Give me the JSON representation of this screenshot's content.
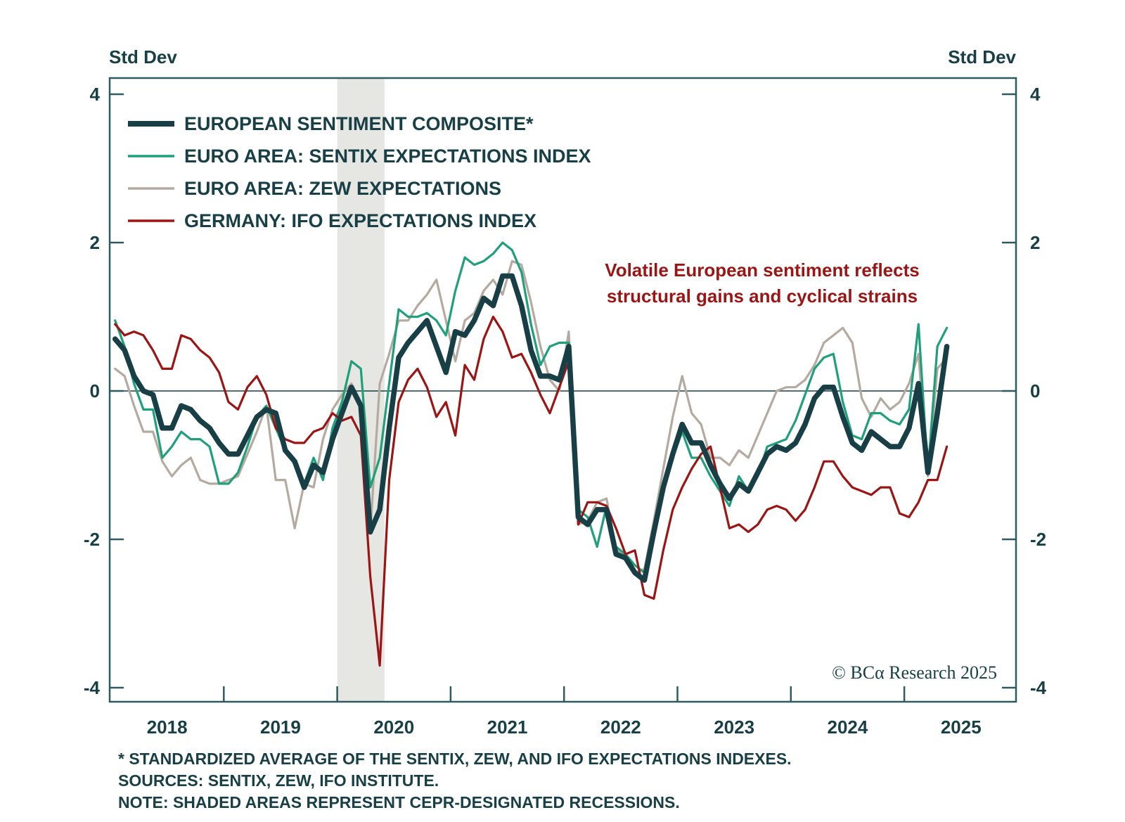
{
  "chart_data": {
    "type": "line",
    "title": "",
    "ylabel_left": "Std Dev",
    "ylabel_right": "Std Dev",
    "ylim": [
      -4.2,
      4.2
    ],
    "yticks": [
      4,
      2,
      0,
      -2,
      -4
    ],
    "ytick_labels": [
      "4",
      "2",
      "0",
      "-2",
      "-4"
    ],
    "x_start": "2018-01",
    "x_frequency": "monthly",
    "x_range_years": [
      2018,
      2026
    ],
    "xtick_labels": [
      "2018",
      "2019",
      "2020",
      "2021",
      "2022",
      "2023",
      "2024",
      "2025"
    ],
    "grid": false,
    "zero_line": true,
    "legend_position": "top-left",
    "recession_shading": [
      {
        "start": "2020-01",
        "end": "2020-05"
      }
    ],
    "annotation": [
      "Volatile European sentiment reflects",
      "structural gains and cyclical strains"
    ],
    "copyright": "© BCα Research 2025",
    "series": [
      {
        "name": "EUROPEAN SENTIMENT COMPOSITE*",
        "color": "#173f45",
        "values": [
          0.7,
          0.55,
          0.2,
          0.0,
          -0.05,
          -0.5,
          -0.5,
          -0.2,
          -0.25,
          -0.4,
          -0.5,
          -0.7,
          -0.85,
          -0.85,
          -0.6,
          -0.35,
          -0.25,
          -0.3,
          -0.8,
          -0.95,
          -1.3,
          -1.0,
          -1.1,
          -0.65,
          -0.3,
          0.05,
          -0.2,
          -1.9,
          -1.6,
          -0.5,
          0.45,
          0.65,
          0.8,
          0.95,
          0.6,
          0.25,
          0.8,
          0.75,
          0.95,
          1.25,
          1.15,
          1.55,
          1.55,
          1.15,
          0.55,
          0.2,
          0.2,
          0.15,
          0.6,
          -1.7,
          -1.8,
          -1.6,
          -1.6,
          -2.2,
          -2.25,
          -2.45,
          -2.55,
          -1.9,
          -1.3,
          -0.85,
          -0.45,
          -0.7,
          -0.7,
          -1.0,
          -1.25,
          -1.45,
          -1.25,
          -1.35,
          -1.1,
          -0.85,
          -0.75,
          -0.8,
          -0.7,
          -0.45,
          -0.1,
          0.05,
          0.05,
          -0.35,
          -0.7,
          -0.8,
          -0.55,
          -0.65,
          -0.75,
          -0.75,
          -0.5,
          0.1,
          -1.1,
          -0.3,
          0.6
        ]
      },
      {
        "name": "EURO AREA: SENTIX EXPECTATIONS INDEX",
        "color": "#1fa07a",
        "values": [
          0.95,
          0.6,
          0.1,
          -0.25,
          -0.25,
          -0.9,
          -0.75,
          -0.55,
          -0.65,
          -0.65,
          -0.75,
          -1.25,
          -1.25,
          -1.1,
          -0.75,
          -0.35,
          -0.2,
          -0.5,
          -0.8,
          -0.95,
          -1.25,
          -0.9,
          -1.2,
          -0.5,
          -0.15,
          0.4,
          0.3,
          -1.3,
          -0.9,
          0.1,
          1.1,
          1.0,
          1.0,
          1.05,
          0.95,
          0.75,
          1.35,
          1.8,
          1.7,
          1.75,
          1.85,
          2.0,
          1.9,
          1.6,
          0.9,
          0.35,
          0.6,
          0.65,
          0.65,
          -1.6,
          -1.7,
          -2.1,
          -1.55,
          -2.1,
          -2.2,
          -2.35,
          -2.45,
          -1.85,
          -1.35,
          -0.9,
          -0.55,
          -0.9,
          -0.9,
          -1.15,
          -1.35,
          -1.55,
          -1.15,
          -1.35,
          -1.15,
          -0.75,
          -0.7,
          -0.65,
          -0.4,
          -0.05,
          0.3,
          0.45,
          0.5,
          -0.15,
          -0.6,
          -0.65,
          -0.3,
          -0.3,
          -0.4,
          -0.45,
          -0.25,
          0.9,
          -1.1,
          0.6,
          0.85
        ]
      },
      {
        "name": "EURO AREA: ZEW EXPECTATIONS",
        "color": "#b5aaa0",
        "values": [
          0.3,
          0.2,
          -0.2,
          -0.55,
          -0.55,
          -0.95,
          -1.15,
          -1.0,
          -0.9,
          -1.2,
          -1.25,
          -1.25,
          -1.2,
          -1.15,
          -0.85,
          -0.55,
          -0.2,
          -1.2,
          -1.2,
          -1.85,
          -1.25,
          -1.3,
          -0.65,
          -0.25,
          -0.05,
          0.1,
          -0.2,
          -1.9,
          0.1,
          0.5,
          0.95,
          0.95,
          1.15,
          1.3,
          1.5,
          0.95,
          0.4,
          0.95,
          1.05,
          1.35,
          1.5,
          1.3,
          1.75,
          1.7,
          1.2,
          0.6,
          0.15,
          0.0,
          0.8,
          -1.8,
          -1.75,
          -1.5,
          -1.45,
          -2.15,
          -2.2,
          -2.45,
          -2.4,
          -1.75,
          -1.05,
          -0.35,
          0.2,
          -0.3,
          -0.45,
          -0.9,
          -0.9,
          -1.0,
          -0.8,
          -0.9,
          -0.6,
          -0.3,
          0.0,
          0.05,
          0.05,
          0.15,
          0.35,
          0.65,
          0.75,
          0.85,
          0.65,
          -0.1,
          -0.35,
          -0.1,
          -0.25,
          -0.15,
          0.1,
          0.5,
          -1.15,
          0.3,
          0.45
        ]
      },
      {
        "name": "GERMANY: IFO EXPECTATIONS INDEX",
        "color": "#9b1515",
        "values": [
          0.9,
          0.75,
          0.8,
          0.75,
          0.55,
          0.3,
          0.3,
          0.75,
          0.7,
          0.55,
          0.45,
          0.25,
          -0.15,
          -0.25,
          0.05,
          0.2,
          -0.05,
          -0.5,
          -0.65,
          -0.7,
          -0.7,
          -0.55,
          -0.5,
          -0.3,
          -0.4,
          -0.35,
          -0.6,
          -2.5,
          -3.7,
          -1.2,
          -0.15,
          0.15,
          0.3,
          0.05,
          -0.35,
          -0.15,
          -0.6,
          0.35,
          0.15,
          0.7,
          1.0,
          0.8,
          0.45,
          0.5,
          0.25,
          -0.05,
          -0.3,
          0.05,
          0.4,
          -1.8,
          -1.5,
          -1.5,
          -1.55,
          -1.85,
          -2.2,
          -2.15,
          -2.75,
          -2.8,
          -2.15,
          -1.6,
          -1.3,
          -1.05,
          -0.85,
          -0.75,
          -1.3,
          -1.85,
          -1.8,
          -1.9,
          -1.8,
          -1.6,
          -1.55,
          -1.6,
          -1.75,
          -1.6,
          -1.3,
          -0.95,
          -0.95,
          -1.15,
          -1.3,
          -1.35,
          -1.4,
          -1.3,
          -1.3,
          -1.65,
          -1.7,
          -1.5,
          -1.2,
          -1.2,
          -0.75
        ]
      }
    ]
  },
  "footnotes": [
    "* STANDARDIZED AVERAGE OF THE SENTIX, ZEW, AND IFO EXPECTATIONS INDEXES.",
    "SOURCES: SENTIX, ZEW, IFO INSTITUTE.",
    "NOTE: SHADED AREAS REPRESENT CEPR-DESIGNATED RECESSIONS."
  ]
}
